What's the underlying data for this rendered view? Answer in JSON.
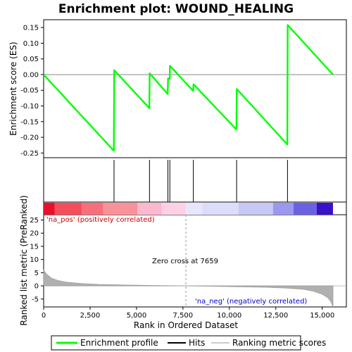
{
  "chart_data": {
    "type": "line",
    "title": "Enrichment plot: WOUND_HEALING",
    "top_panel": {
      "ylabel": "Enrichment score (ES)",
      "ylim": [
        -0.265,
        0.175
      ],
      "yticks": [
        -0.25,
        -0.2,
        -0.15,
        -0.1,
        -0.05,
        0.0,
        0.05,
        0.1,
        0.15
      ],
      "ytick_labels": [
        "-0.25",
        "-0.20",
        "-0.15",
        "-0.10",
        "-0.05",
        "0.00",
        "0.05",
        "0.10",
        "0.15"
      ],
      "series": [
        {
          "name": "Enrichment profile",
          "color": "#00ff00",
          "x": [
            0,
            3780,
            3800,
            5690,
            5710,
            6680,
            6700,
            6790,
            6800,
            8050,
            8070,
            10380,
            10400,
            13120,
            13140,
            15580
          ],
          "y": [
            0.0,
            -0.243,
            0.014,
            -0.107,
            0.004,
            -0.062,
            -0.012,
            -0.014,
            0.028,
            -0.052,
            -0.031,
            -0.175,
            -0.046,
            -0.223,
            0.158,
            0.0
          ]
        }
      ],
      "hits": [
        3790,
        5700,
        6690,
        6795,
        8060,
        10390,
        13130
      ]
    },
    "bottom_panel": {
      "ylabel": "Ranked list metric (PreRanked)",
      "ylim": [
        -8,
        27
      ],
      "yticks": [
        -5,
        0,
        5,
        10,
        15,
        20,
        25
      ],
      "ytick_labels": [
        "-5",
        "0",
        "5",
        "10",
        "15",
        "20",
        "25"
      ],
      "metric_profile": {
        "x": [
          0,
          150,
          400,
          800,
          1200,
          2000,
          3000,
          4500,
          6000,
          7659,
          9000,
          10500,
          12000,
          13000,
          14000,
          14500,
          15000,
          15300,
          15450,
          15580
        ],
        "y": [
          6.0,
          4.5,
          3.0,
          2.0,
          1.4,
          0.9,
          0.55,
          0.3,
          0.15,
          0.0,
          -0.15,
          -0.35,
          -0.55,
          -0.8,
          -1.3,
          -2.0,
          -3.2,
          -4.5,
          -5.8,
          -8.0
        ]
      },
      "zero_cross_label": "Zero cross at 7659",
      "zero_cross": 7659,
      "pos_label": "'na_pos' (positively correlated)",
      "neg_label": "'na_neg' (negatively correlated)",
      "pos_color": "#ff0000",
      "neg_color": "#0000ff"
    },
    "xlabel": "Rank in Ordered Dataset",
    "xlim": [
      0,
      16300
    ],
    "xticks": [
      0,
      2500,
      5000,
      7500,
      10000,
      12500,
      15000
    ],
    "xtick_labels": [
      "0",
      "2,500",
      "5,000",
      "7,500",
      "10,000",
      "12,500",
      "15,000"
    ],
    "color_band": [
      {
        "from": 0,
        "to": 600,
        "color": "#e8102a"
      },
      {
        "from": 600,
        "to": 2050,
        "color": "#f54d5c"
      },
      {
        "from": 2050,
        "to": 3200,
        "color": "#f76f7a"
      },
      {
        "from": 3200,
        "to": 5050,
        "color": "#fa9098"
      },
      {
        "from": 5050,
        "to": 6350,
        "color": "#fcb8cf"
      },
      {
        "from": 6350,
        "to": 7650,
        "color": "#fdd0e6"
      },
      {
        "from": 7650,
        "to": 8550,
        "color": "#e8e6fb"
      },
      {
        "from": 8550,
        "to": 10500,
        "color": "#dcdcfb"
      },
      {
        "from": 10500,
        "to": 12350,
        "color": "#c8c8f6"
      },
      {
        "from": 12350,
        "to": 13450,
        "color": "#9a98ef"
      },
      {
        "from": 13450,
        "to": 14700,
        "color": "#6a62e2"
      },
      {
        "from": 14700,
        "to": 15580,
        "color": "#3a10c8"
      }
    ],
    "legend": [
      {
        "label": "Enrichment profile",
        "color": "#00ff00"
      },
      {
        "label": "Hits",
        "color": "#000000"
      },
      {
        "label": "Ranking metric scores",
        "color": "#bbbbbb"
      }
    ]
  }
}
